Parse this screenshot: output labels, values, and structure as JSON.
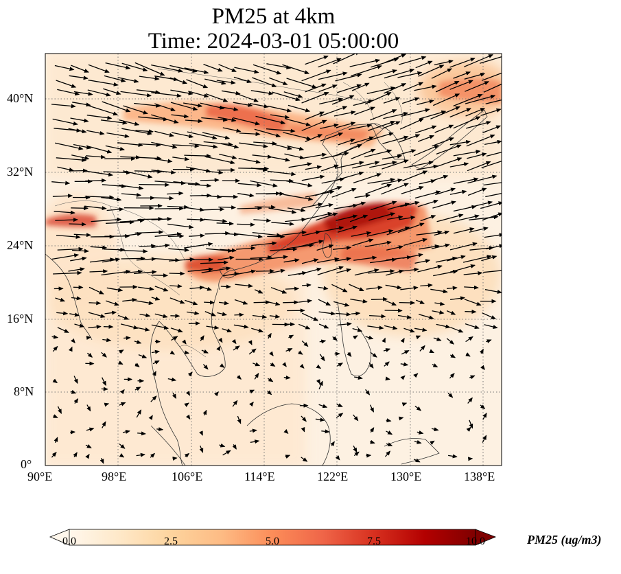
{
  "title": {
    "line1": "PM25 at 4km",
    "line2": "Time: 2024-03-01 05:00:00"
  },
  "map": {
    "extent": {
      "lon": [
        90,
        140
      ],
      "lat": [
        0,
        45
      ]
    },
    "x_ticks": [
      90,
      98,
      106,
      114,
      122,
      130,
      138
    ],
    "x_tick_labels": [
      "90°E",
      "98°E",
      "106°E",
      "114°E",
      "122°E",
      "130°E",
      "138°E"
    ],
    "y_ticks": [
      0,
      8,
      16,
      24,
      32,
      40
    ],
    "y_tick_labels": [
      "0°",
      "8°N",
      "16°N",
      "24°N",
      "32°N",
      "40°N"
    ],
    "gridlines": "dotted",
    "colormap": "OrRd",
    "wind_vectors": "westerly, stronger north of 20°N"
  },
  "colorbar": {
    "label": "PM25 (ug/m3)",
    "range": [
      0,
      10
    ],
    "ticks": [
      0.0,
      2.5,
      5.0,
      7.5,
      10.0
    ],
    "tick_labels": [
      "0.0",
      "2.5",
      "5.0",
      "7.5",
      "10.0"
    ],
    "extend": "both",
    "colors": [
      "#fff7ec",
      "#fee8c8",
      "#fdd49e",
      "#fdbb84",
      "#fc8d59",
      "#ef6548",
      "#d7301f",
      "#b30000",
      "#7f0000"
    ]
  }
}
